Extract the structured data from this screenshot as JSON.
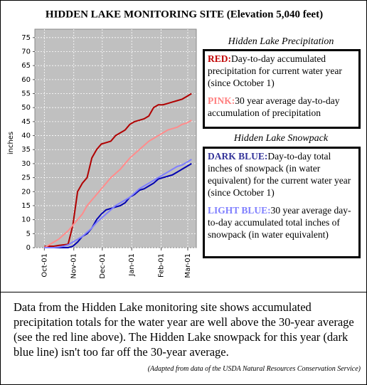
{
  "chart_data": {
    "type": "line",
    "title": "HIDDEN LAKE MONITORING SITE (Elevation 5,040 feet)",
    "ylabel": "inches",
    "x": [
      0,
      5,
      10,
      15,
      20,
      25,
      30,
      35,
      40,
      45,
      50,
      55,
      60,
      65,
      70,
      75,
      80,
      85,
      90,
      95,
      100,
      105,
      110,
      115,
      120,
      125,
      130,
      135,
      140,
      145,
      150,
      155
    ],
    "xlim": [
      -10,
      160
    ],
    "xticks": [
      {
        "value": 0,
        "label": "Oct-01"
      },
      {
        "value": 31,
        "label": "Nov-01"
      },
      {
        "value": 61,
        "label": "Dec-01"
      },
      {
        "value": 92,
        "label": "Jan-01"
      },
      {
        "value": 123,
        "label": "Feb-01"
      },
      {
        "value": 151,
        "label": "Mar-01"
      }
    ],
    "ylim": [
      0,
      78
    ],
    "yticks": [
      0,
      5,
      10,
      15,
      20,
      25,
      30,
      35,
      40,
      45,
      50,
      55,
      60,
      65,
      70,
      75
    ],
    "grid": true,
    "legend_titles": [
      "Hidden Lake Precipitation",
      "Hidden Lake Snowpack"
    ],
    "series": [
      {
        "name": "RED:",
        "label_color": "#c00000",
        "color": "#b00000",
        "group": 0,
        "description": "Day-to-day accumulated precipitation for current water year (since October 1)",
        "values": [
          0.5,
          0.5,
          0.5,
          0.8,
          1,
          1.2,
          8,
          20,
          23,
          25,
          32,
          35,
          37,
          37.5,
          38,
          40,
          41,
          42,
          44,
          45,
          45.5,
          46,
          47,
          50,
          51,
          51,
          51.5,
          52,
          52.5,
          53,
          54,
          55
        ]
      },
      {
        "name": "PINK:",
        "label_color": "#ff7f7f",
        "color": "#ff8c8c",
        "group": 0,
        "description": "30 year average day-to-day accumulation of precipitation",
        "values": [
          0,
          1,
          2,
          3,
          4.5,
          6,
          8,
          10,
          12,
          15,
          17,
          19,
          21,
          23,
          25,
          26.5,
          28,
          30,
          32,
          33.5,
          35,
          36.5,
          38,
          39,
          40,
          41,
          42,
          42.5,
          43,
          44,
          44.5,
          45.5
        ]
      },
      {
        "name": "DARK BLUE:",
        "label_color": "#333399",
        "color": "#0000b0",
        "group": 1,
        "description": "Day-to-day total inches of snowpack (in water equivalent) for the current water year (since October 1)",
        "values": [
          0,
          0,
          0,
          0,
          0,
          0,
          0.5,
          2,
          4,
          5,
          7,
          10,
          12,
          13.5,
          14,
          14.5,
          15,
          16,
          18,
          19,
          20.5,
          21,
          22,
          23,
          24.5,
          25,
          25.5,
          26,
          27,
          28,
          29,
          30
        ]
      },
      {
        "name": "LIGHT BLUE:",
        "label_color": "#7f7fff",
        "color": "#8080ff",
        "group": 1,
        "description": "30 year average day-to-day accumulated total inches of snowpack (in water equivalent)",
        "values": [
          0,
          0,
          0,
          0.2,
          0.5,
          1,
          2,
          3,
          4,
          5.5,
          7,
          9,
          10.5,
          12,
          13.5,
          15,
          16,
          17,
          18,
          19.5,
          21,
          22,
          23,
          24,
          25,
          26,
          27,
          28,
          29,
          29.5,
          30.5,
          31.5
        ]
      }
    ],
    "caption": "Data from the Hidden Lake monitoring site shows accumulated precipitation totals for the water year are well above the 30-year average (see the red line above).  The Hidden Lake snowpack for this year (dark blue line) isn't too far off the 30-year average.",
    "source": "(Adapted from data of the USDA Natural Resources Conservation Service)"
  }
}
